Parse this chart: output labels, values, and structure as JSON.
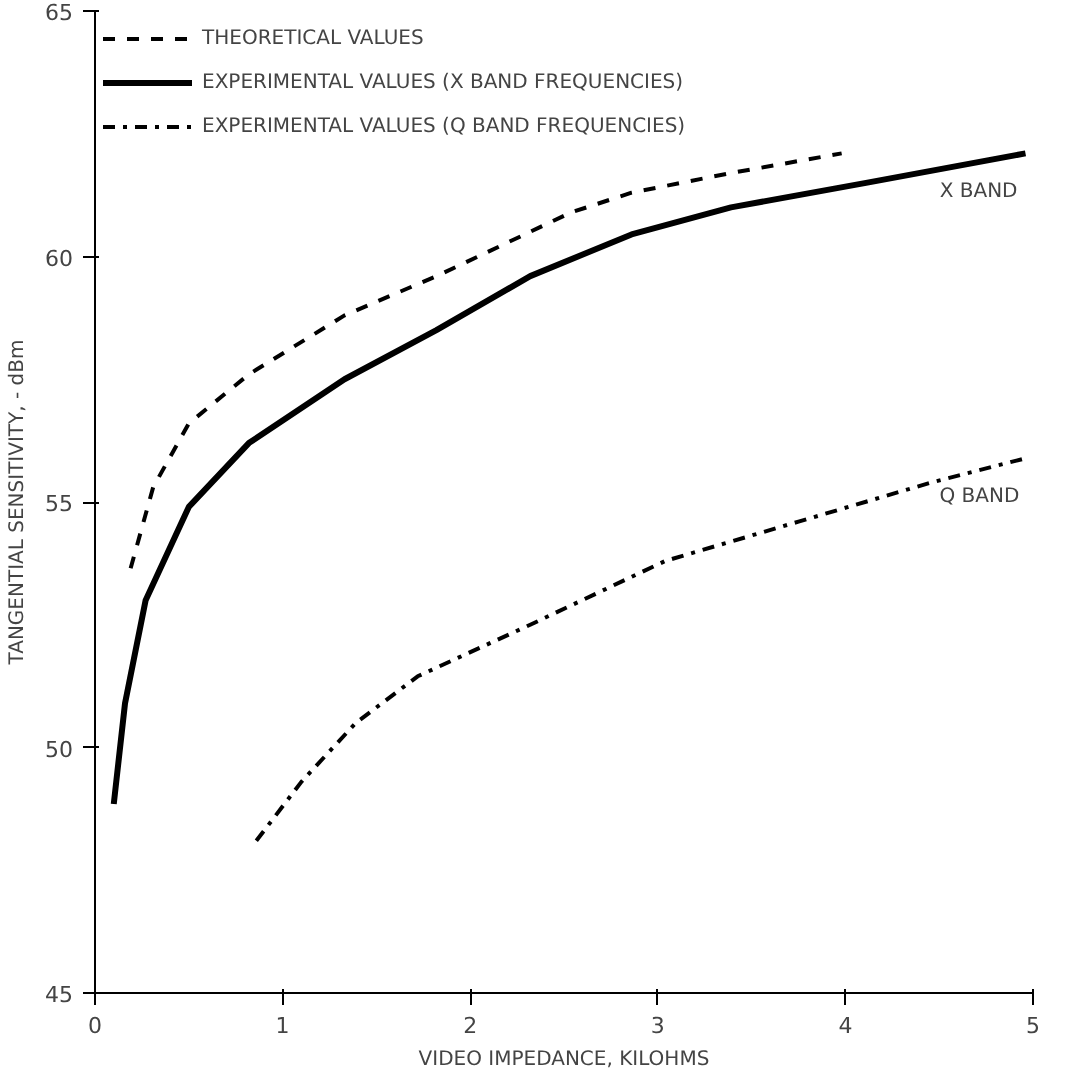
{
  "chart_data": {
    "type": "line",
    "xlabel": "VIDEO IMPEDANCE, KILOHMS",
    "ylabel": "TANGENTIAL SENSITIVITY, - dBm",
    "xlim": [
      0,
      5
    ],
    "ylim": [
      45,
      65
    ],
    "xticks": [
      0,
      1,
      2,
      3,
      4,
      5
    ],
    "yticks": [
      45,
      50,
      55,
      60,
      65
    ],
    "grid": false,
    "legend": "top left",
    "marker": "none",
    "series": [
      {
        "name": "THEORETICAL VALUES",
        "color": "#000000",
        "line_style": "dashed",
        "x": [
          0.19,
          0.31,
          0.5,
          0.82,
          1.33,
          1.82,
          2.54,
          2.86,
          3.39,
          3.98
        ],
        "values": [
          53.65,
          55.3,
          56.6,
          57.6,
          58.8,
          59.6,
          60.9,
          61.3,
          61.7,
          62.1
        ]
      },
      {
        "name": "EXPERIMENTAL VALUES (X BAND FREQUENCIES)",
        "color": "#000000",
        "line_style": "solid",
        "x": [
          0.1,
          0.16,
          0.27,
          0.5,
          0.82,
          1.33,
          1.82,
          2.32,
          2.86,
          3.39,
          4.11,
          4.96
        ],
        "values": [
          48.85,
          50.9,
          53.0,
          54.9,
          56.2,
          57.5,
          58.5,
          59.6,
          60.45,
          61.0,
          61.5,
          62.1
        ]
      },
      {
        "name": "EXPERIMENTAL VALUES (Q BAND FREQUENCIES)",
        "color": "#000000",
        "line_style": "dashdot",
        "x": [
          0.86,
          1.1,
          1.39,
          1.72,
          2.32,
          3.04,
          3.75,
          4.46,
          4.97
        ],
        "values": [
          48.1,
          49.3,
          50.5,
          51.45,
          52.5,
          53.8,
          54.6,
          55.4,
          55.9
        ]
      }
    ],
    "annotations": [
      "X BAND",
      "Q BAND"
    ]
  }
}
